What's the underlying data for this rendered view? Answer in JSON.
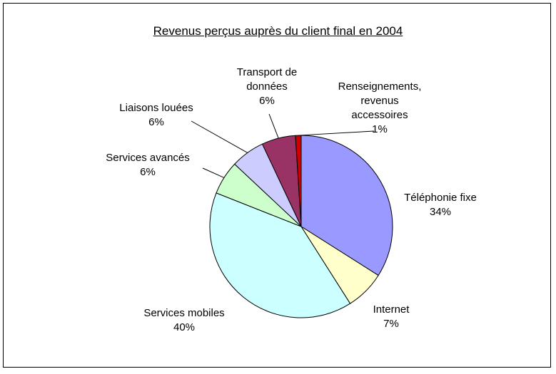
{
  "chart_data": {
    "type": "pie",
    "title": "Revenus perçus auprès du client final en 2004",
    "categories": [
      "Téléphonie fixe",
      "Internet",
      "Services mobiles",
      "Services avancés",
      "Liaisons louées",
      "Transport de données",
      "Renseignements, revenus accessoires"
    ],
    "values": [
      34,
      7,
      40,
      6,
      6,
      6,
      1
    ],
    "value_labels": [
      "34%",
      "7%",
      "40%",
      "6%",
      "6%",
      "6%",
      "1%"
    ],
    "colors": [
      "#9999ff",
      "#ffffcc",
      "#ccffff",
      "#ccffcc",
      "#ccccff",
      "#993366",
      "#cc0000"
    ]
  }
}
